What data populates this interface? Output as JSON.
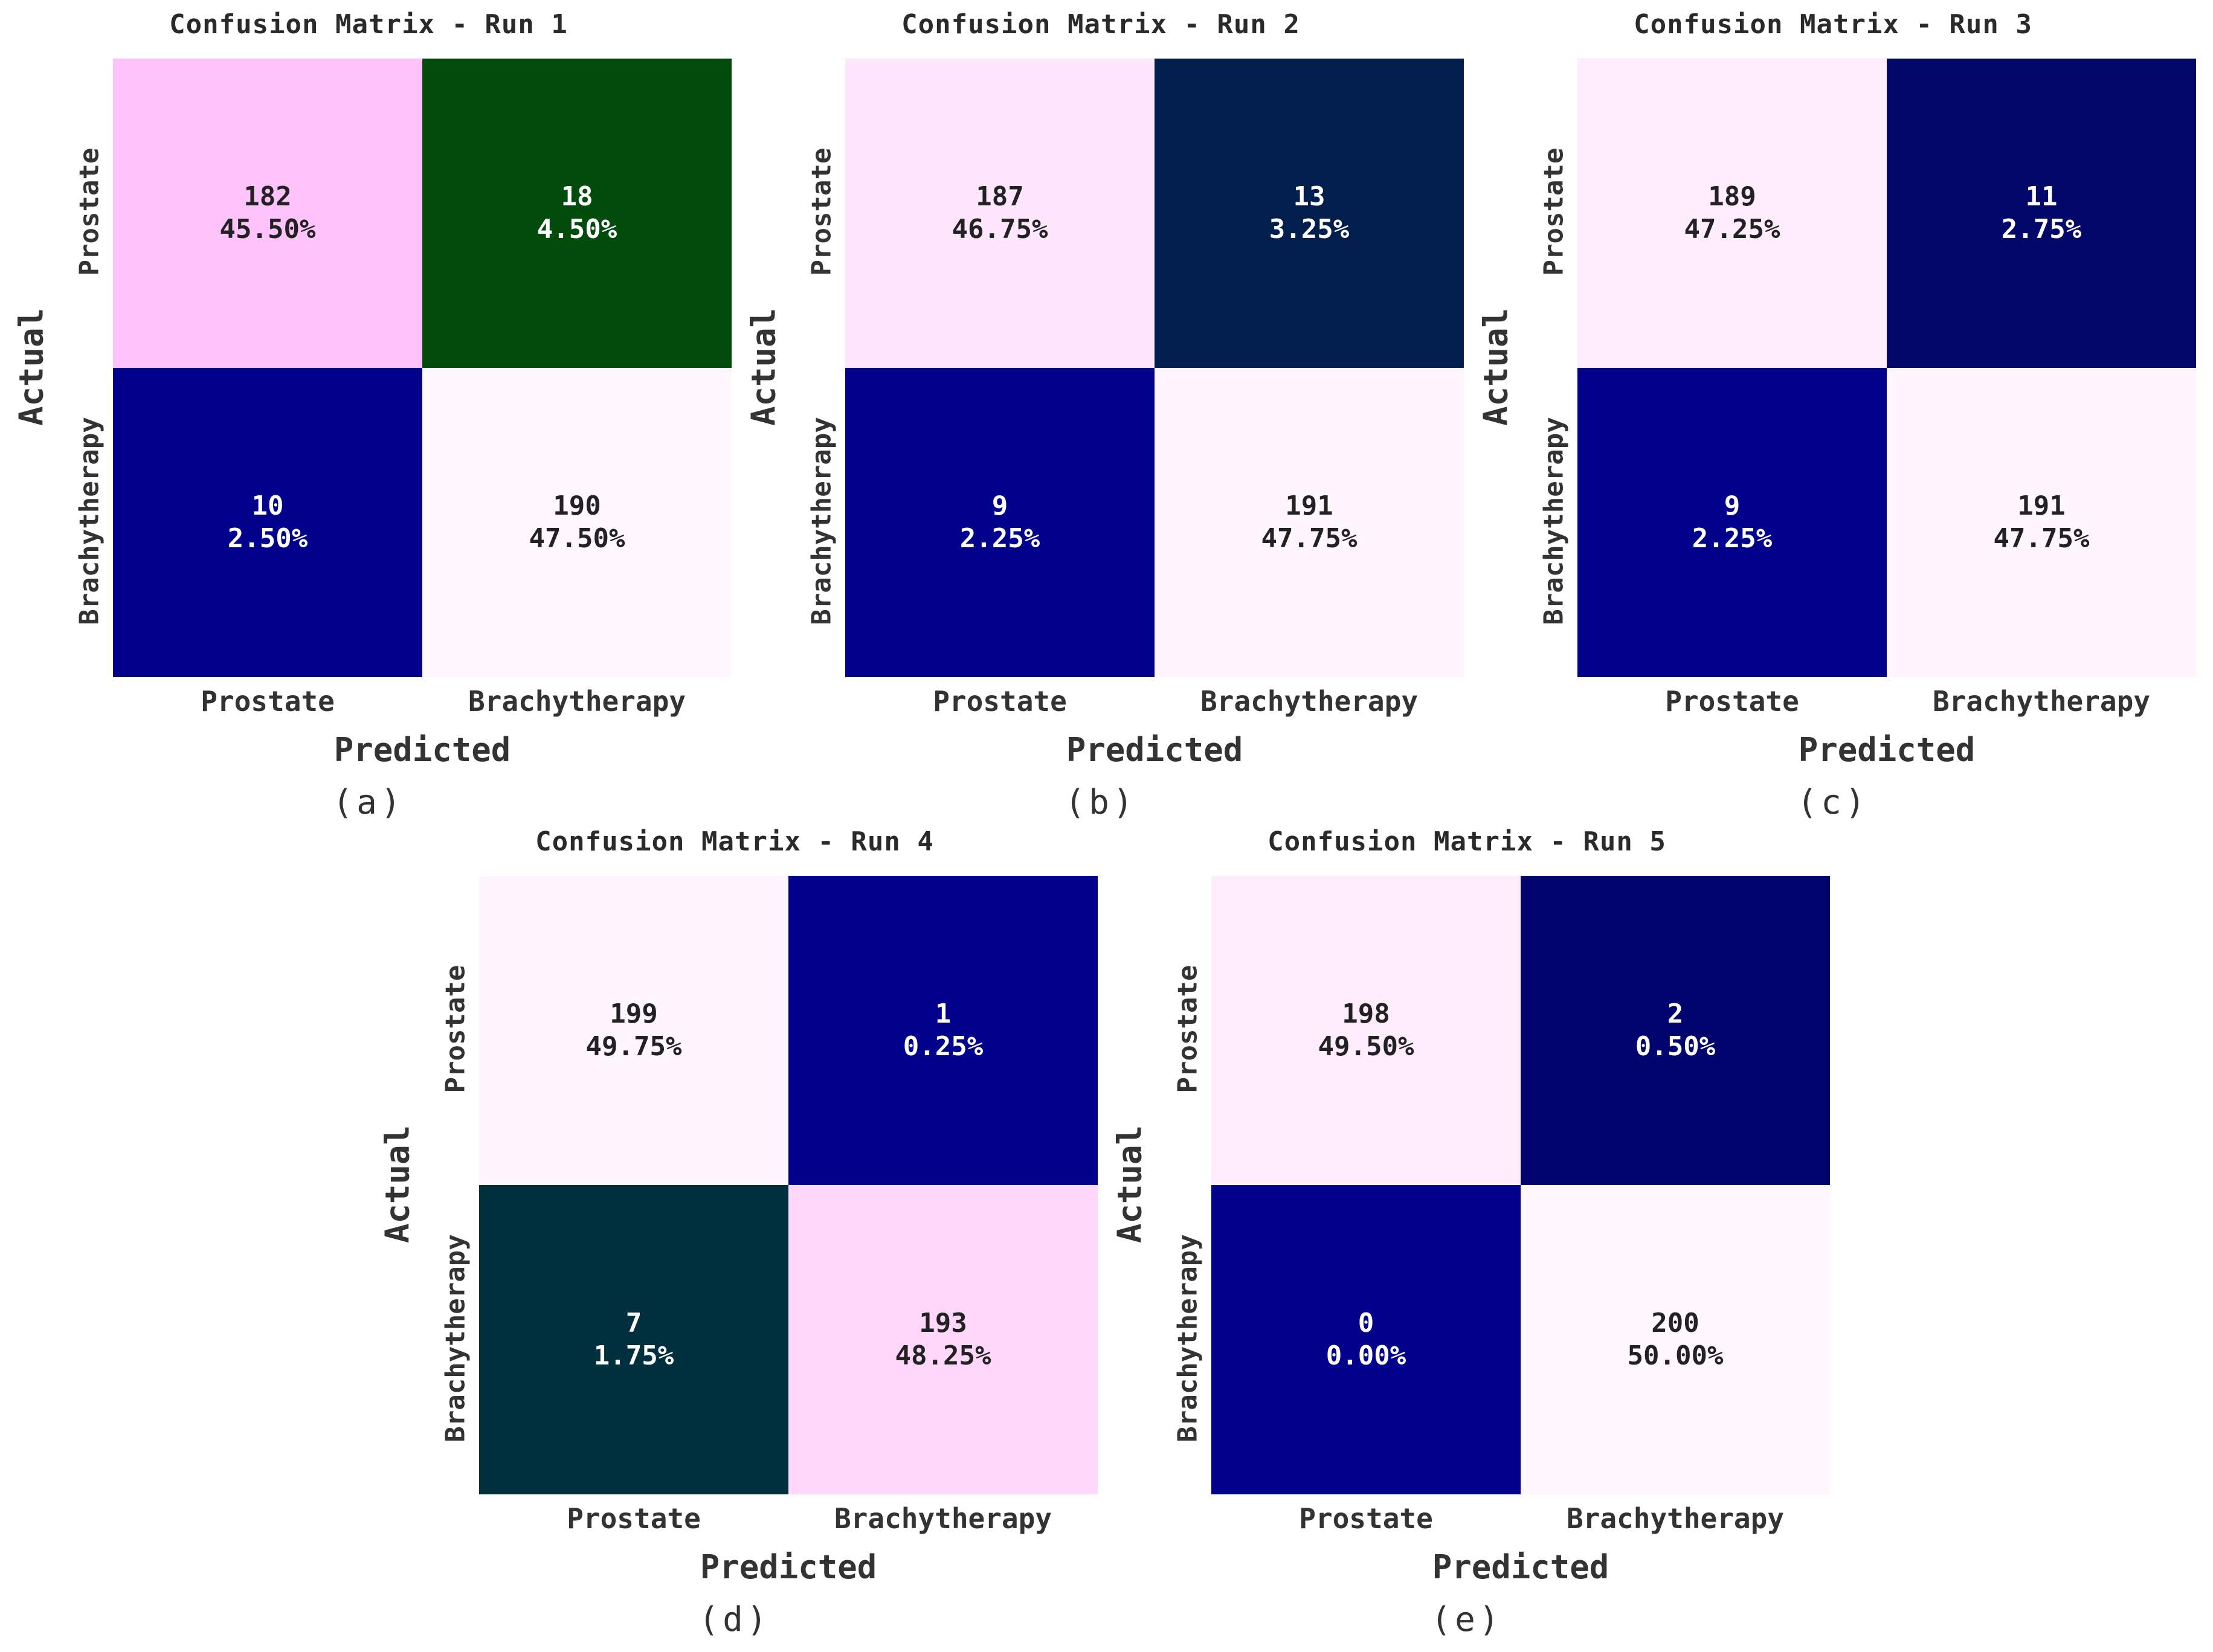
{
  "chart_data": [
    {
      "type": "heatmap",
      "title": "Confusion Matrix - Run 1",
      "xlabel": "Predicted",
      "ylabel": "Actual",
      "x_categories": [
        "Prostate",
        "Brachytherapy"
      ],
      "y_categories": [
        "Prostate",
        "Brachytherapy"
      ],
      "counts": [
        [
          182,
          18
        ],
        [
          10,
          190
        ]
      ],
      "percents": [
        [
          "45.50%",
          "4.50%"
        ],
        [
          "2.50%",
          "47.50%"
        ]
      ],
      "cell_colors": [
        [
          "#fec3fa",
          "#014b0b"
        ],
        [
          "#01018b",
          "#fff6fe"
        ]
      ],
      "text_colors": [
        [
          "#222222",
          "#ffffff"
        ],
        [
          "#ffffff",
          "#222222"
        ]
      ],
      "panel_label": "(a)"
    },
    {
      "type": "heatmap",
      "title": "Confusion Matrix - Run 2",
      "xlabel": "Predicted",
      "ylabel": "Actual",
      "x_categories": [
        "Prostate",
        "Brachytherapy"
      ],
      "y_categories": [
        "Prostate",
        "Brachytherapy"
      ],
      "counts": [
        [
          187,
          13
        ],
        [
          9,
          191
        ]
      ],
      "percents": [
        [
          "46.75%",
          "3.25%"
        ],
        [
          "2.25%",
          "47.75%"
        ]
      ],
      "cell_colors": [
        [
          "#fee6fc",
          "#011e4c"
        ],
        [
          "#01018b",
          "#fff5fe"
        ]
      ],
      "text_colors": [
        [
          "#222222",
          "#ffffff"
        ],
        [
          "#ffffff",
          "#222222"
        ]
      ],
      "panel_label": "(b)"
    },
    {
      "type": "heatmap",
      "title": "Confusion Matrix - Run 3",
      "xlabel": "Predicted",
      "ylabel": "Actual",
      "x_categories": [
        "Prostate",
        "Brachytherapy"
      ],
      "y_categories": [
        "Prostate",
        "Brachytherapy"
      ],
      "counts": [
        [
          189,
          11
        ],
        [
          9,
          191
        ]
      ],
      "percents": [
        [
          "47.25%",
          "2.75%"
        ],
        [
          "2.25%",
          "47.75%"
        ]
      ],
      "cell_colors": [
        [
          "#ffecfd",
          "#01086a"
        ],
        [
          "#01018b",
          "#fff5fe"
        ]
      ],
      "text_colors": [
        [
          "#222222",
          "#ffffff"
        ],
        [
          "#ffffff",
          "#222222"
        ]
      ],
      "panel_label": "(c)"
    },
    {
      "type": "heatmap",
      "title": "Confusion Matrix - Run 4",
      "xlabel": "Predicted",
      "ylabel": "Actual",
      "x_categories": [
        "Prostate",
        "Brachytherapy"
      ],
      "y_categories": [
        "Prostate",
        "Brachytherapy"
      ],
      "counts": [
        [
          199,
          1
        ],
        [
          7,
          193
        ]
      ],
      "percents": [
        [
          "49.75%",
          "0.25%"
        ],
        [
          "1.75%",
          "48.25%"
        ]
      ],
      "cell_colors": [
        [
          "#fff5fe",
          "#01018b"
        ],
        [
          "#00303d",
          "#fed7fa"
        ]
      ],
      "text_colors": [
        [
          "#222222",
          "#ffffff"
        ],
        [
          "#ffffff",
          "#222222"
        ]
      ],
      "panel_label": "(d)"
    },
    {
      "type": "heatmap",
      "title": "Confusion Matrix - Run 5",
      "xlabel": "Predicted",
      "ylabel": "Actual",
      "x_categories": [
        "Prostate",
        "Brachytherapy"
      ],
      "y_categories": [
        "Prostate",
        "Brachytherapy"
      ],
      "counts": [
        [
          198,
          2
        ],
        [
          0,
          200
        ]
      ],
      "percents": [
        [
          "49.50%",
          "0.50%"
        ],
        [
          "0.00%",
          "50.00%"
        ]
      ],
      "cell_colors": [
        [
          "#ffedfd",
          "#01046f"
        ],
        [
          "#01018b",
          "#fff6fe"
        ]
      ],
      "text_colors": [
        [
          "#222222",
          "#ffffff"
        ],
        [
          "#ffffff",
          "#222222"
        ]
      ],
      "panel_label": "(e)"
    }
  ]
}
